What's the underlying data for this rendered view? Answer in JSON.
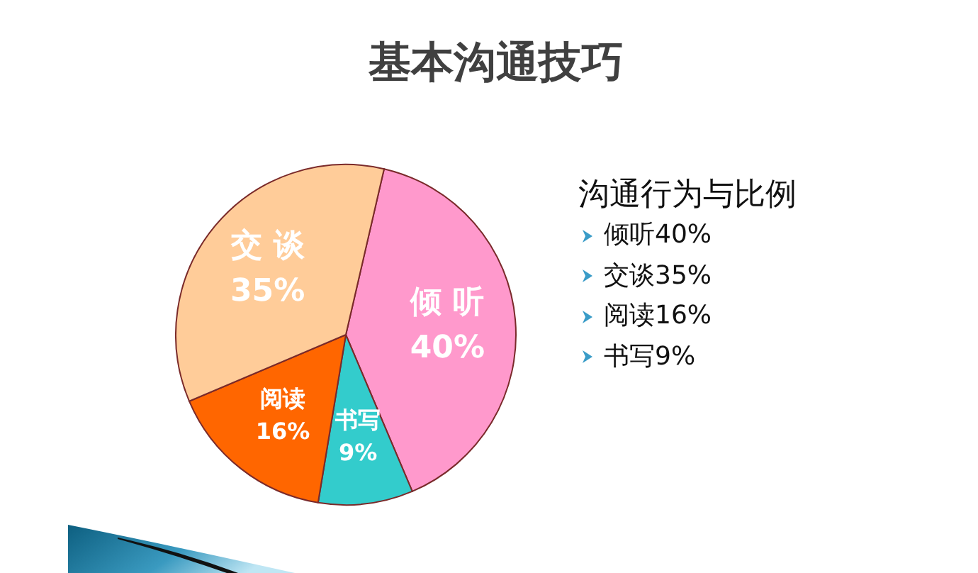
{
  "chart_data": {
    "type": "pie",
    "title": "基本沟通技巧",
    "categories": [
      "倾听",
      "书写",
      "阅读",
      "交谈"
    ],
    "values": [
      40,
      9,
      16,
      35
    ],
    "colors": [
      "#ff99cc",
      "#33cccc",
      "#ff6600",
      "#ffcc99"
    ],
    "value_labels": [
      "40%",
      "9%",
      "16%",
      "35%"
    ],
    "annotations": [
      "沟通行为与比例",
      "倾听40%",
      "交谈35%",
      "阅读16%",
      "书写9%"
    ]
  }
}
